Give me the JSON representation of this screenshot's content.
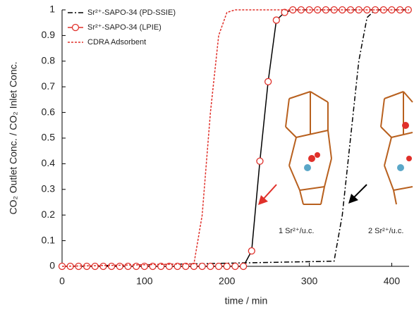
{
  "chart_data": {
    "type": "line",
    "x_label": "time / min",
    "y_label": "CO₂ Outlet Conc. / CO₂ Inlet Conc.",
    "xlim": [
      0,
      421
    ],
    "xticks": [
      0,
      100,
      200,
      300,
      400
    ],
    "ylim": [
      0,
      1
    ],
    "yticks": [
      0,
      0.1,
      0.2,
      0.3,
      0.4,
      0.5,
      0.6,
      0.7,
      0.8,
      0.9,
      1
    ],
    "legend": "upper-left",
    "annotations": [
      "1 Sr²⁺/u.c.",
      "2 Sr²⁺/u.c."
    ],
    "series": [
      {
        "name": "Sr²⁺-SAPO-34 (PD-SSIE)",
        "color": "#000000",
        "style": "dashdot",
        "marker": "none",
        "x": [
          0,
          330,
          340,
          350,
          360,
          370,
          380,
          421
        ],
        "values": [
          0,
          0.02,
          0.2,
          0.5,
          0.8,
          0.97,
          1,
          1
        ]
      },
      {
        "name": "Sr²⁺-SAPO-34 (LPIE)",
        "color": "#e0302a",
        "line_color": "#000000",
        "style": "solid",
        "marker": "circle",
        "x": [
          0,
          10,
          20,
          30,
          40,
          50,
          60,
          70,
          80,
          90,
          100,
          110,
          120,
          130,
          140,
          150,
          160,
          170,
          180,
          190,
          200,
          210,
          220,
          230,
          240,
          250,
          260,
          270,
          280,
          290,
          300,
          310,
          320,
          330,
          340,
          350,
          360,
          370,
          380,
          390,
          400,
          410,
          420
        ],
        "values": [
          0,
          0,
          0,
          0,
          0,
          0,
          0,
          0,
          0,
          0,
          0,
          0,
          0,
          0,
          0,
          0,
          0,
          0,
          0,
          0,
          0,
          0,
          0,
          0.06,
          0.41,
          0.72,
          0.96,
          0.99,
          1,
          1,
          1,
          1,
          1,
          1,
          1,
          1,
          1,
          1,
          1,
          1,
          1,
          1,
          1
        ]
      },
      {
        "name": "CDRA Adsorbent",
        "color": "#e0302a",
        "style": "dashed",
        "marker": "none",
        "x": [
          0,
          160,
          170,
          180,
          190,
          200,
          210,
          421
        ],
        "values": [
          0,
          0.01,
          0.2,
          0.6,
          0.9,
          0.99,
          1,
          1
        ]
      }
    ]
  }
}
